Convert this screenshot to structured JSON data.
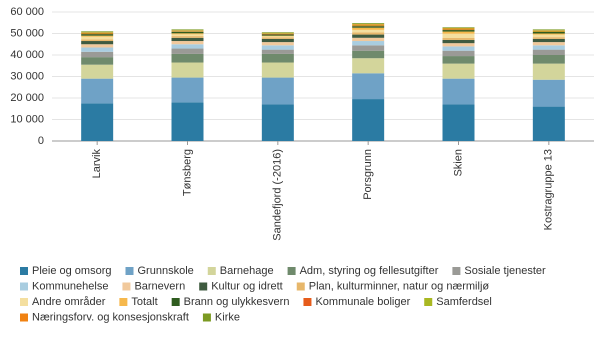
{
  "chart_data": {
    "type": "stacked_bar",
    "categories": [
      "Larvik",
      "Tønsberg",
      "Sandefjord (-2016)",
      "Porsgrunn",
      "Skien",
      "Kostragruppe 13"
    ],
    "ylim": [
      0,
      60000
    ],
    "yticks": [
      {
        "value": 0,
        "label": "0"
      },
      {
        "value": 10000,
        "label": "10 000"
      },
      {
        "value": 20000,
        "label": "20 000"
      },
      {
        "value": 30000,
        "label": "30 000"
      },
      {
        "value": 40000,
        "label": "40 000"
      },
      {
        "value": 50000,
        "label": "50 000"
      },
      {
        "value": 60000,
        "label": "60 000"
      }
    ],
    "grid": true,
    "series": [
      {
        "name": "Pleie og omsorg",
        "color": "#2b7ba3",
        "values": [
          17500,
          18000,
          17000,
          19500,
          17000,
          16000
        ]
      },
      {
        "name": "Grunnskole",
        "color": "#6fa2c6",
        "values": [
          11500,
          11500,
          12500,
          12000,
          12000,
          12500
        ]
      },
      {
        "name": "Barnehage",
        "color": "#d3d59b",
        "values": [
          6500,
          7000,
          7000,
          7000,
          7000,
          7500
        ]
      },
      {
        "name": "Adm, styring og fellesutgifter",
        "color": "#6f8a6c",
        "values": [
          3500,
          4000,
          4000,
          3500,
          3500,
          4000
        ]
      },
      {
        "name": "Sosiale tjenester",
        "color": "#9a9a96",
        "values": [
          2500,
          2500,
          2000,
          2500,
          2500,
          2500
        ]
      },
      {
        "name": "Kommunehelse",
        "color": "#a9cde0",
        "values": [
          2000,
          2000,
          2000,
          2000,
          2000,
          2000
        ]
      },
      {
        "name": "Barnevern",
        "color": "#f1c99c",
        "values": [
          1500,
          1500,
          1500,
          1500,
          1500,
          1500
        ]
      },
      {
        "name": "Kultur og idrett",
        "color": "#3f5b40",
        "values": [
          1500,
          1500,
          1500,
          1500,
          1500,
          1500
        ]
      },
      {
        "name": "Plan, kulturminner, natur og nærmiljø",
        "color": "#e7b76b",
        "values": [
          800,
          800,
          700,
          1000,
          900,
          800
        ]
      },
      {
        "name": "Andre områder",
        "color": "#f4dfa0",
        "values": [
          1200,
          800,
          500,
          1200,
          2000,
          1200
        ]
      },
      {
        "name": "Totalt",
        "color": "#f6b84c",
        "values": [
          500,
          500,
          300,
          1000,
          1000,
          500
        ]
      },
      {
        "name": "Brann og ulykkesvern",
        "color": "#2f5c1f",
        "values": [
          700,
          700,
          600,
          700,
          700,
          700
        ]
      },
      {
        "name": "Kommunale boliger",
        "color": "#e65c1b",
        "values": [
          300,
          200,
          200,
          300,
          300,
          200
        ]
      },
      {
        "name": "Samferdsel",
        "color": "#a9b822",
        "values": [
          400,
          300,
          300,
          400,
          400,
          400
        ]
      },
      {
        "name": "Næringsforv. og konsesjonskraft",
        "color": "#f08212",
        "values": [
          200,
          200,
          200,
          300,
          300,
          200
        ]
      },
      {
        "name": "Kirke",
        "color": "#7b9a22",
        "values": [
          400,
          400,
          300,
          400,
          300,
          400
        ]
      }
    ]
  }
}
